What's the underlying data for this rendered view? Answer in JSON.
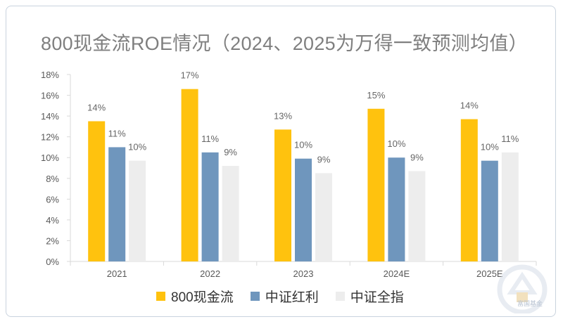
{
  "title": "800现金流ROE情况（2024、2025为万得一致预测均值）",
  "watermark_text": "富国基金",
  "chart_data": {
    "type": "bar",
    "title": "800现金流ROE情况（2024、2025为万得一致预测均值）",
    "categories": [
      "2021",
      "2022",
      "2023",
      "2024E",
      "2025E"
    ],
    "series": [
      {
        "name": "800现金流",
        "color": "#ffc20e",
        "values": [
          13.5,
          16.6,
          12.7,
          14.7,
          13.7
        ],
        "labels": [
          "14%",
          "17%",
          "13%",
          "15%",
          "14%"
        ]
      },
      {
        "name": "中证红利",
        "color": "#6f96bd",
        "values": [
          11.0,
          10.5,
          9.9,
          10.0,
          9.7
        ],
        "labels": [
          "11%",
          "11%",
          "10%",
          "10%",
          "10%"
        ]
      },
      {
        "name": "中证全指",
        "color": "#ededed",
        "values": [
          9.7,
          9.2,
          8.5,
          8.7,
          10.5
        ],
        "labels": [
          "10%",
          "9%",
          "9%",
          "9%",
          "11%"
        ]
      }
    ],
    "yticks": [
      "0%",
      "2%",
      "4%",
      "6%",
      "8%",
      "10%",
      "12%",
      "14%",
      "16%",
      "18%"
    ],
    "ylim": [
      0,
      18
    ],
    "grid": false,
    "legend": "bottom"
  }
}
